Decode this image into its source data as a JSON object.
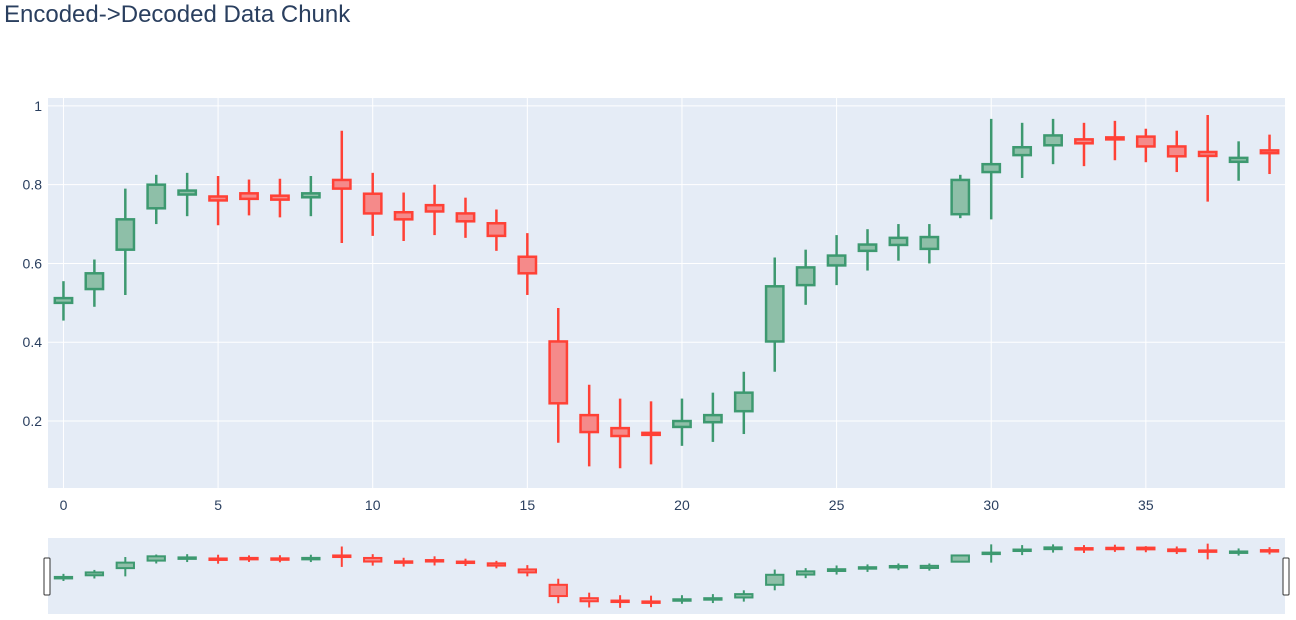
{
  "chart_data": {
    "type": "candlestick",
    "title": "Encoded->Decoded Data Chunk",
    "xlabel": "",
    "ylabel": "",
    "xlim": [
      -0.5,
      39.5
    ],
    "ylim": [
      0.03,
      1.02
    ],
    "x_ticks": [
      0,
      5,
      10,
      15,
      20,
      25,
      30,
      35
    ],
    "y_ticks": [
      0.2,
      0.4,
      0.6,
      0.8,
      1
    ],
    "y_tick_labels": [
      "0.2",
      "0.4",
      "0.6",
      "0.8",
      "1"
    ],
    "grid": true,
    "rangeslider": true,
    "increasing_color": "#3D9970",
    "decreasing_color": "#FF4136",
    "increasing_fill": "#8EBFA8",
    "decreasing_fill": "#F58A8A",
    "background_color": "#E5ECF6",
    "candles": [
      {
        "x": 0,
        "open": 0.5,
        "high": 0.555,
        "low": 0.455,
        "close": 0.512
      },
      {
        "x": 1,
        "open": 0.535,
        "high": 0.61,
        "low": 0.49,
        "close": 0.575
      },
      {
        "x": 2,
        "open": 0.635,
        "high": 0.79,
        "low": 0.52,
        "close": 0.712
      },
      {
        "x": 3,
        "open": 0.74,
        "high": 0.825,
        "low": 0.7,
        "close": 0.8
      },
      {
        "x": 4,
        "open": 0.775,
        "high": 0.83,
        "low": 0.72,
        "close": 0.785
      },
      {
        "x": 5,
        "open": 0.77,
        "high": 0.822,
        "low": 0.697,
        "close": 0.76
      },
      {
        "x": 6,
        "open": 0.778,
        "high": 0.813,
        "low": 0.722,
        "close": 0.764
      },
      {
        "x": 7,
        "open": 0.772,
        "high": 0.815,
        "low": 0.717,
        "close": 0.762
      },
      {
        "x": 8,
        "open": 0.768,
        "high": 0.822,
        "low": 0.72,
        "close": 0.778
      },
      {
        "x": 9,
        "open": 0.812,
        "high": 0.937,
        "low": 0.652,
        "close": 0.79
      },
      {
        "x": 10,
        "open": 0.777,
        "high": 0.83,
        "low": 0.67,
        "close": 0.727
      },
      {
        "x": 11,
        "open": 0.73,
        "high": 0.78,
        "low": 0.657,
        "close": 0.712
      },
      {
        "x": 12,
        "open": 0.748,
        "high": 0.8,
        "low": 0.672,
        "close": 0.732
      },
      {
        "x": 13,
        "open": 0.727,
        "high": 0.767,
        "low": 0.665,
        "close": 0.707
      },
      {
        "x": 14,
        "open": 0.702,
        "high": 0.737,
        "low": 0.632,
        "close": 0.67
      },
      {
        "x": 15,
        "open": 0.617,
        "high": 0.677,
        "low": 0.52,
        "close": 0.575
      },
      {
        "x": 16,
        "open": 0.402,
        "high": 0.487,
        "low": 0.145,
        "close": 0.245
      },
      {
        "x": 17,
        "open": 0.215,
        "high": 0.292,
        "low": 0.085,
        "close": 0.172
      },
      {
        "x": 18,
        "open": 0.182,
        "high": 0.257,
        "low": 0.08,
        "close": 0.162
      },
      {
        "x": 19,
        "open": 0.17,
        "high": 0.25,
        "low": 0.09,
        "close": 0.165
      },
      {
        "x": 20,
        "open": 0.185,
        "high": 0.257,
        "low": 0.137,
        "close": 0.2
      },
      {
        "x": 21,
        "open": 0.197,
        "high": 0.272,
        "low": 0.147,
        "close": 0.215
      },
      {
        "x": 22,
        "open": 0.225,
        "high": 0.325,
        "low": 0.167,
        "close": 0.272
      },
      {
        "x": 23,
        "open": 0.402,
        "high": 0.615,
        "low": 0.325,
        "close": 0.542
      },
      {
        "x": 24,
        "open": 0.545,
        "high": 0.635,
        "low": 0.495,
        "close": 0.59
      },
      {
        "x": 25,
        "open": 0.595,
        "high": 0.672,
        "low": 0.545,
        "close": 0.62
      },
      {
        "x": 26,
        "open": 0.632,
        "high": 0.687,
        "low": 0.582,
        "close": 0.648
      },
      {
        "x": 27,
        "open": 0.647,
        "high": 0.7,
        "low": 0.607,
        "close": 0.665
      },
      {
        "x": 28,
        "open": 0.637,
        "high": 0.7,
        "low": 0.6,
        "close": 0.667
      },
      {
        "x": 29,
        "open": 0.725,
        "high": 0.825,
        "low": 0.715,
        "close": 0.812
      },
      {
        "x": 30,
        "open": 0.832,
        "high": 0.967,
        "low": 0.712,
        "close": 0.852
      },
      {
        "x": 31,
        "open": 0.875,
        "high": 0.957,
        "low": 0.817,
        "close": 0.895
      },
      {
        "x": 32,
        "open": 0.9,
        "high": 0.967,
        "low": 0.852,
        "close": 0.925
      },
      {
        "x": 33,
        "open": 0.915,
        "high": 0.957,
        "low": 0.847,
        "close": 0.905
      },
      {
        "x": 34,
        "open": 0.92,
        "high": 0.962,
        "low": 0.862,
        "close": 0.915
      },
      {
        "x": 35,
        "open": 0.922,
        "high": 0.942,
        "low": 0.857,
        "close": 0.897
      },
      {
        "x": 36,
        "open": 0.897,
        "high": 0.937,
        "low": 0.832,
        "close": 0.872
      },
      {
        "x": 37,
        "open": 0.883,
        "high": 0.977,
        "low": 0.757,
        "close": 0.873
      },
      {
        "x": 38,
        "open": 0.858,
        "high": 0.91,
        "low": 0.81,
        "close": 0.868
      },
      {
        "x": 39,
        "open": 0.887,
        "high": 0.927,
        "low": 0.827,
        "close": 0.88
      }
    ]
  }
}
